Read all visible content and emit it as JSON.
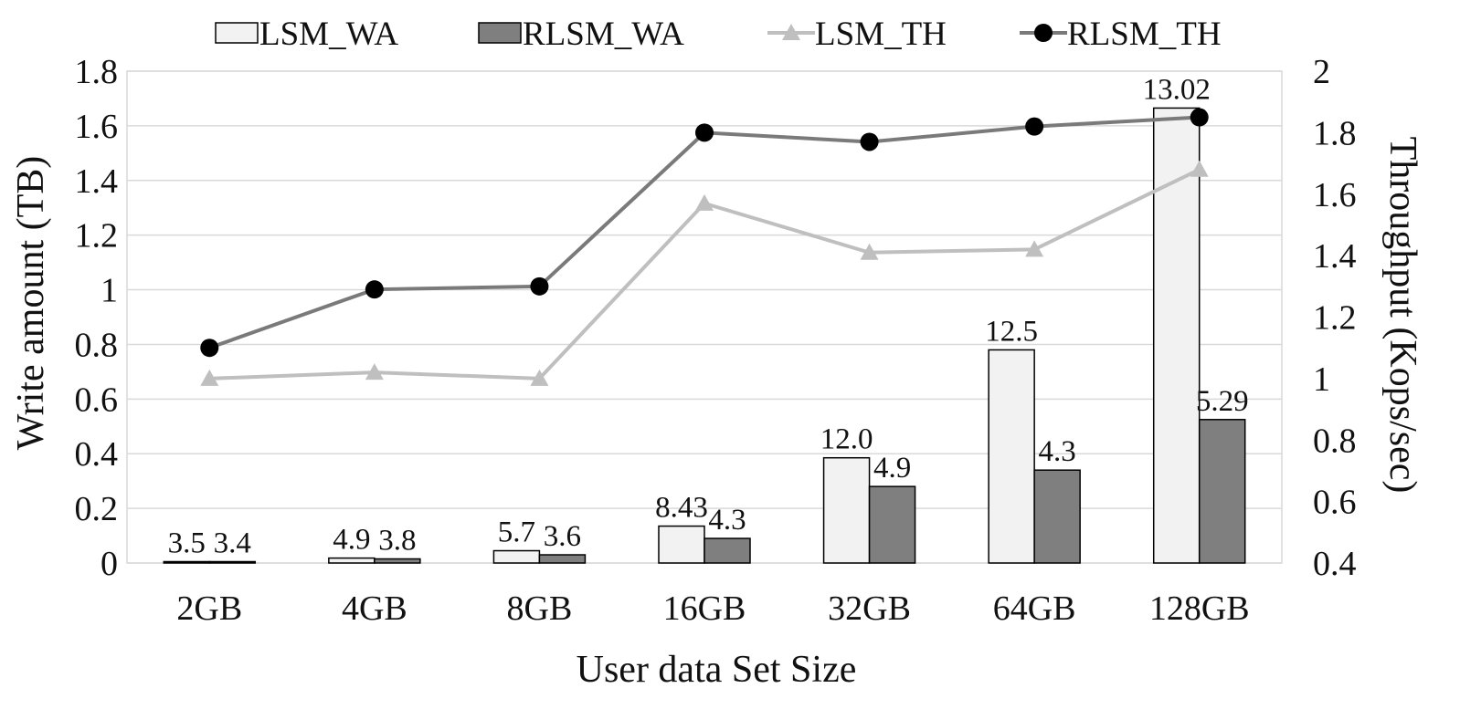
{
  "chart_data": {
    "type": "bar",
    "categories": [
      "2GB",
      "4GB",
      "8GB",
      "16GB",
      "32GB",
      "64GB",
      "128GB"
    ],
    "xlabel": "User data Set Size",
    "ylabel": "Write amount (TB)",
    "y2label": "Throughput (Kops/sec)",
    "ylim": [
      0,
      1.8
    ],
    "y2lim": [
      0.4,
      2
    ],
    "yticks": [
      "0",
      "0.2",
      "0.4",
      "0.6",
      "0.8",
      "1",
      "1.2",
      "1.4",
      "1.6",
      "1.8"
    ],
    "y2ticks": [
      "0.4",
      "0.6",
      "0.8",
      "1",
      "1.2",
      "1.4",
      "1.6",
      "1.8",
      "2"
    ],
    "grid": "horizontal",
    "legend_position": "top",
    "bar_series": [
      {
        "name": "LSM_WA",
        "values": [
          0.005,
          0.018,
          0.045,
          0.135,
          0.385,
          0.78,
          1.665
        ],
        "labels": [
          "3.5",
          "4.9",
          "5.7",
          "8.43",
          "12.0",
          "12.5",
          "13.02"
        ],
        "color": "#f2f2f2"
      },
      {
        "name": "RLSM_WA",
        "values": [
          0.005,
          0.015,
          0.03,
          0.09,
          0.28,
          0.34,
          0.525
        ],
        "labels": [
          "3.4",
          "3.8",
          "3.6",
          "4.3",
          "4.9",
          "4.3",
          "5.29"
        ],
        "color": "#7f7f7f"
      }
    ],
    "line_series": [
      {
        "name": "LSM_TH",
        "values": [
          1.0,
          1.02,
          1.0,
          1.57,
          1.41,
          1.42,
          1.68
        ],
        "color": "#bfbfbf",
        "marker": "triangle"
      },
      {
        "name": "RLSM_TH",
        "values": [
          1.1,
          1.29,
          1.3,
          1.8,
          1.77,
          1.82,
          1.85
        ],
        "color": "#7a7a7a",
        "marker_color": "#000000",
        "marker": "circle"
      }
    ]
  }
}
